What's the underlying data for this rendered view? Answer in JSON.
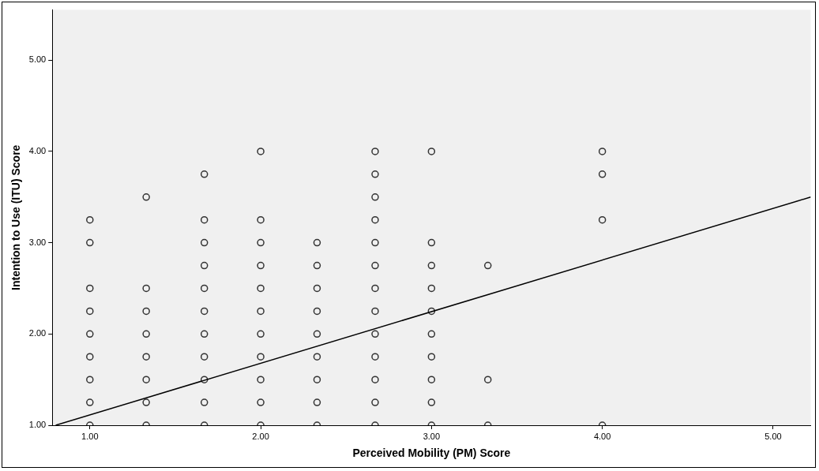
{
  "chart_data": {
    "type": "scatter",
    "xlabel": "Perceived Mobility (PM) Score",
    "ylabel": "Intention to Use (ITU) Score",
    "xlim": [
      0.78,
      5.22
    ],
    "ylim": [
      1,
      5.55
    ],
    "xticks": [
      {
        "value": 1,
        "label": "1.00"
      },
      {
        "value": 2,
        "label": "2.00"
      },
      {
        "value": 3,
        "label": "3.00"
      },
      {
        "value": 4,
        "label": "4.00"
      },
      {
        "value": 5,
        "label": "5.00"
      }
    ],
    "yticks": [
      {
        "value": 1,
        "label": "1.00"
      },
      {
        "value": 2,
        "label": "2.00"
      },
      {
        "value": 3,
        "label": "3.00"
      },
      {
        "value": 4,
        "label": "4.00"
      },
      {
        "value": 5,
        "label": "5.00"
      }
    ],
    "grid": false,
    "legend": false,
    "marker": "circle",
    "series": [
      {
        "color": "#333333",
        "x": [
          1,
          1,
          1,
          1,
          1,
          1,
          1,
          1,
          1,
          1.33,
          1.33,
          1.33,
          1.33,
          1.33,
          1.33,
          1.33,
          1.33,
          1.67,
          1.67,
          1.67,
          1.67,
          1.67,
          1.67,
          1.67,
          1.67,
          1.67,
          1.67,
          1.67,
          2,
          2,
          2,
          2,
          2,
          2,
          2,
          2,
          2,
          2,
          2,
          2.33,
          2.33,
          2.33,
          2.33,
          2.33,
          2.33,
          2.33,
          2.33,
          2.33,
          2.67,
          2.67,
          2.67,
          2.67,
          2.67,
          2.67,
          2.67,
          2.67,
          2.67,
          2.67,
          2.67,
          2.67,
          2.67,
          3,
          3,
          3,
          3,
          3,
          3,
          3,
          3,
          3,
          3,
          3.33,
          3.33,
          3.33,
          4,
          4,
          4,
          4
        ],
        "values": [
          3.25,
          3,
          2.5,
          2.25,
          2,
          1.75,
          1.5,
          1.25,
          1,
          3.5,
          2.5,
          2.25,
          2,
          1.75,
          1.5,
          1.25,
          1,
          3.75,
          3.25,
          3,
          2.75,
          2.5,
          2.25,
          2,
          1.75,
          1.5,
          1.25,
          1,
          4,
          3.25,
          3,
          2.75,
          2.5,
          2.25,
          2,
          1.75,
          1.5,
          1.25,
          1,
          3,
          2.75,
          2.5,
          2.25,
          2,
          1.75,
          1.5,
          1.25,
          1,
          4,
          3.75,
          3.5,
          3.25,
          3,
          2.75,
          2.5,
          2.25,
          2,
          1.75,
          1.5,
          1.25,
          1,
          4,
          3,
          2.75,
          2.5,
          2.25,
          2,
          1.75,
          1.5,
          1.25,
          1,
          2.75,
          1.5,
          1,
          4,
          3.75,
          3.25,
          1
        ]
      },
      {
        "type": "line",
        "marker": "none",
        "color": "#000000",
        "x": [
          0.8,
          5.22
        ],
        "values": [
          1,
          3.5
        ]
      }
    ]
  }
}
